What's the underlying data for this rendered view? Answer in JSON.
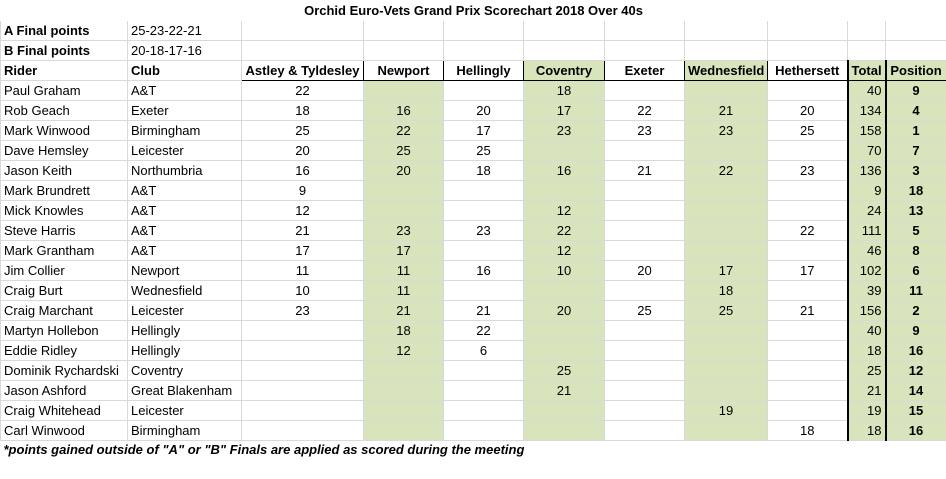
{
  "title": "Orchid Euro-Vets Grand Prix Scorechart 2018 Over 40s",
  "finals": [
    {
      "label": "A Final points",
      "points": "25-23-22-21"
    },
    {
      "label": "B Final points",
      "points": "20-18-17-16"
    }
  ],
  "table": {
    "columns": [
      "Rider",
      "Club",
      "Astley & Tyldesley",
      "Newport",
      "Hellingly",
      "Coventry",
      "Exeter",
      "Wednesfield",
      "Hethersett",
      "Total",
      "Position"
    ],
    "rows": [
      [
        "Paul Graham",
        "A&T",
        22,
        null,
        null,
        18,
        null,
        null,
        null,
        40,
        9
      ],
      [
        "Rob Geach",
        "Exeter",
        18,
        16,
        20,
        17,
        22,
        21,
        20,
        134,
        4
      ],
      [
        "Mark Winwood",
        "Birmingham",
        25,
        22,
        17,
        23,
        23,
        23,
        25,
        158,
        1
      ],
      [
        "Dave Hemsley",
        "Leicester",
        20,
        25,
        25,
        null,
        null,
        null,
        null,
        70,
        7
      ],
      [
        "Jason Keith",
        "Northumbria",
        16,
        20,
        18,
        16,
        21,
        22,
        23,
        136,
        3
      ],
      [
        "Mark Brundrett",
        "A&T",
        9,
        null,
        null,
        null,
        null,
        null,
        null,
        9,
        18
      ],
      [
        "Mick Knowles",
        "A&T",
        12,
        null,
        null,
        12,
        null,
        null,
        null,
        24,
        13
      ],
      [
        "Steve Harris",
        "A&T",
        21,
        23,
        23,
        22,
        null,
        null,
        22,
        111,
        5
      ],
      [
        "Mark Grantham",
        "A&T",
        17,
        17,
        null,
        12,
        null,
        null,
        null,
        46,
        8
      ],
      [
        "Jim Collier",
        "Newport",
        11,
        11,
        16,
        10,
        20,
        17,
        17,
        102,
        6
      ],
      [
        "Craig Burt",
        "Wednesfield",
        10,
        11,
        null,
        null,
        null,
        18,
        null,
        39,
        11
      ],
      [
        "Craig Marchant",
        "Leicester",
        23,
        21,
        21,
        20,
        25,
        25,
        21,
        156,
        2
      ],
      [
        "Martyn Hollebon",
        "Hellingly",
        null,
        18,
        22,
        null,
        null,
        null,
        null,
        40,
        9
      ],
      [
        "Eddie Ridley",
        "Hellingly",
        null,
        12,
        6,
        null,
        null,
        null,
        null,
        18,
        16
      ],
      [
        "Dominik Rychardski",
        "Coventry",
        null,
        null,
        null,
        25,
        null,
        null,
        null,
        25,
        12
      ],
      [
        "Jason Ashford",
        "Great Blakenham",
        null,
        null,
        null,
        21,
        null,
        null,
        null,
        21,
        14
      ],
      [
        "Craig Whitehead",
        "Leicester",
        null,
        null,
        null,
        null,
        null,
        19,
        null,
        19,
        15
      ],
      [
        "Carl Winwood",
        "Birmingham",
        null,
        null,
        null,
        null,
        null,
        null,
        18,
        18,
        16
      ]
    ]
  },
  "footnote": "*points gained outside of \"A\" or \"B\" Finals are applied as scored during the meeting"
}
